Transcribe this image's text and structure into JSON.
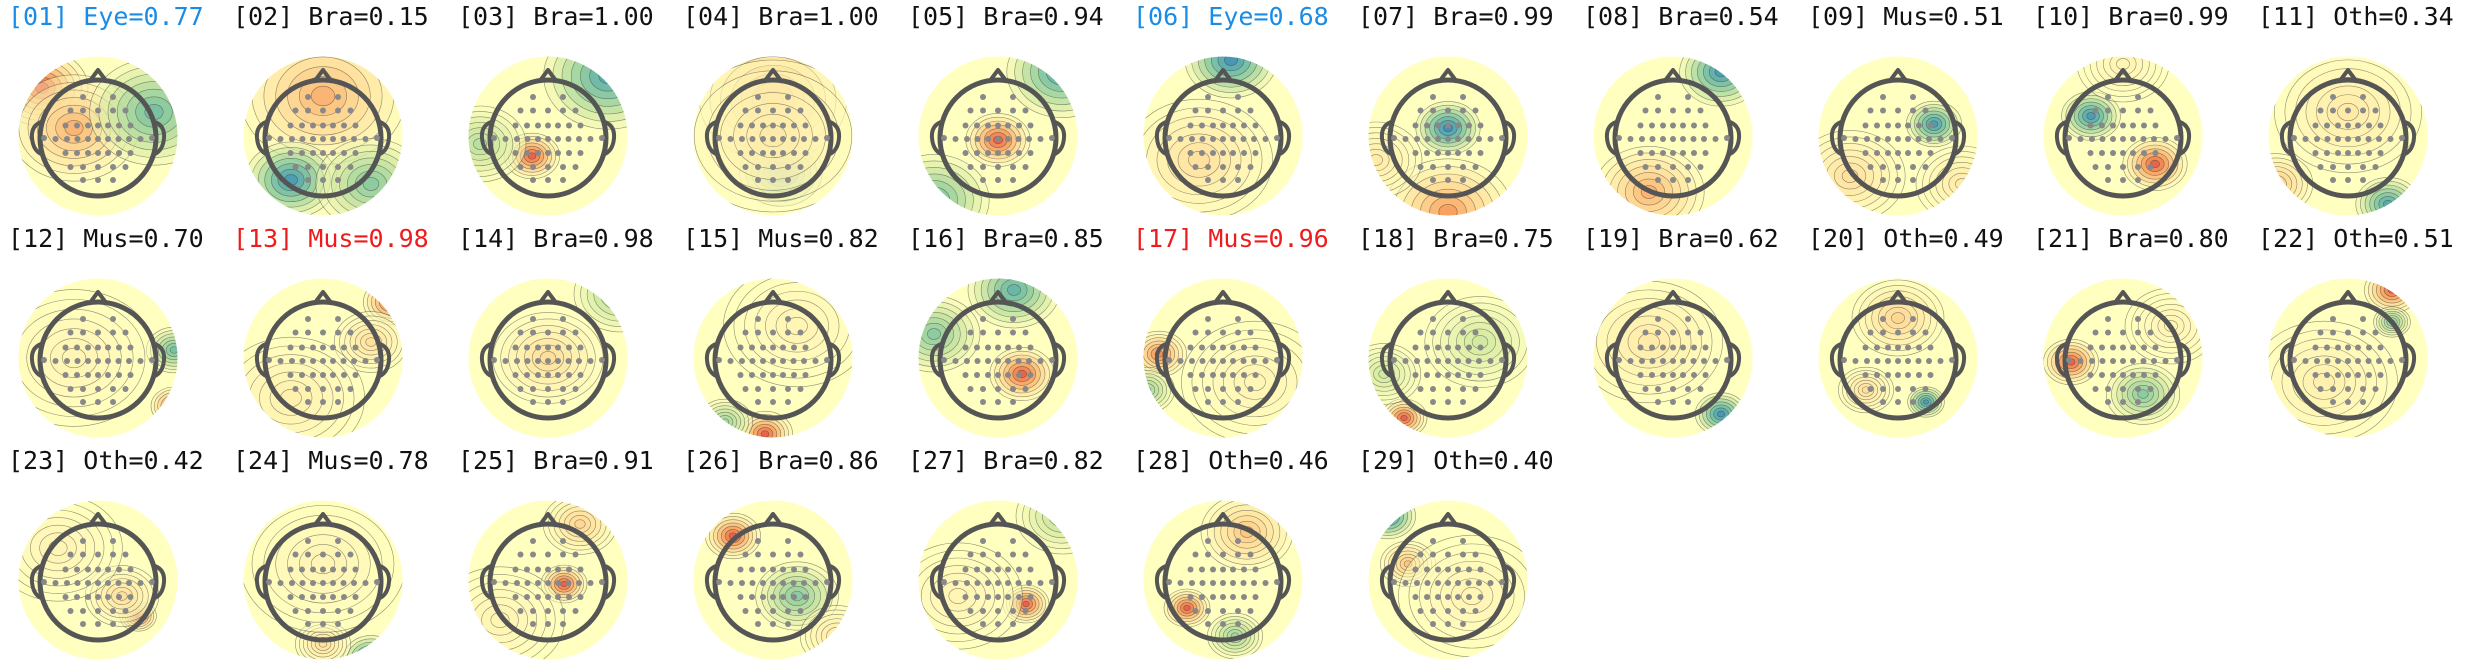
{
  "figure": {
    "colors": {
      "default": "#111111",
      "eye": "#1a8ce6",
      "muscle": "#ee1c1c"
    },
    "components": [
      {
        "index": "[01]",
        "label": "Eye",
        "score": "0.77",
        "highlight": "eye"
      },
      {
        "index": "[02]",
        "label": "Bra",
        "score": "0.15",
        "highlight": "none"
      },
      {
        "index": "[03]",
        "label": "Bra",
        "score": "1.00",
        "highlight": "none"
      },
      {
        "index": "[04]",
        "label": "Bra",
        "score": "1.00",
        "highlight": "none"
      },
      {
        "index": "[05]",
        "label": "Bra",
        "score": "0.94",
        "highlight": "none"
      },
      {
        "index": "[06]",
        "label": "Eye",
        "score": "0.68",
        "highlight": "eye"
      },
      {
        "index": "[07]",
        "label": "Bra",
        "score": "0.99",
        "highlight": "none"
      },
      {
        "index": "[08]",
        "label": "Bra",
        "score": "0.54",
        "highlight": "none"
      },
      {
        "index": "[09]",
        "label": "Mus",
        "score": "0.51",
        "highlight": "none"
      },
      {
        "index": "[10]",
        "label": "Bra",
        "score": "0.99",
        "highlight": "none"
      },
      {
        "index": "[11]",
        "label": "Oth",
        "score": "0.34",
        "highlight": "none"
      },
      {
        "index": "[12]",
        "label": "Mus",
        "score": "0.70",
        "highlight": "none"
      },
      {
        "index": "[13]",
        "label": "Mus",
        "score": "0.98",
        "highlight": "muscle"
      },
      {
        "index": "[14]",
        "label": "Bra",
        "score": "0.98",
        "highlight": "none"
      },
      {
        "index": "[15]",
        "label": "Mus",
        "score": "0.82",
        "highlight": "none"
      },
      {
        "index": "[16]",
        "label": "Bra",
        "score": "0.85",
        "highlight": "none"
      },
      {
        "index": "[17]",
        "label": "Mus",
        "score": "0.96",
        "highlight": "muscle"
      },
      {
        "index": "[18]",
        "label": "Bra",
        "score": "0.75",
        "highlight": "none"
      },
      {
        "index": "[19]",
        "label": "Bra",
        "score": "0.62",
        "highlight": "none"
      },
      {
        "index": "[20]",
        "label": "Oth",
        "score": "0.49",
        "highlight": "none"
      },
      {
        "index": "[21]",
        "label": "Bra",
        "score": "0.80",
        "highlight": "none"
      },
      {
        "index": "[22]",
        "label": "Oth",
        "score": "0.51",
        "highlight": "none"
      },
      {
        "index": "[23]",
        "label": "Oth",
        "score": "0.42",
        "highlight": "none"
      },
      {
        "index": "[24]",
        "label": "Mus",
        "score": "0.78",
        "highlight": "none"
      },
      {
        "index": "[25]",
        "label": "Bra",
        "score": "0.91",
        "highlight": "none"
      },
      {
        "index": "[26]",
        "label": "Bra",
        "score": "0.86",
        "highlight": "none"
      },
      {
        "index": "[27]",
        "label": "Bra",
        "score": "0.82",
        "highlight": "none"
      },
      {
        "index": "[28]",
        "label": "Oth",
        "score": "0.46",
        "highlight": "none"
      },
      {
        "index": "[29]",
        "label": "Oth",
        "score": "0.40",
        "highlight": "none"
      }
    ]
  }
}
